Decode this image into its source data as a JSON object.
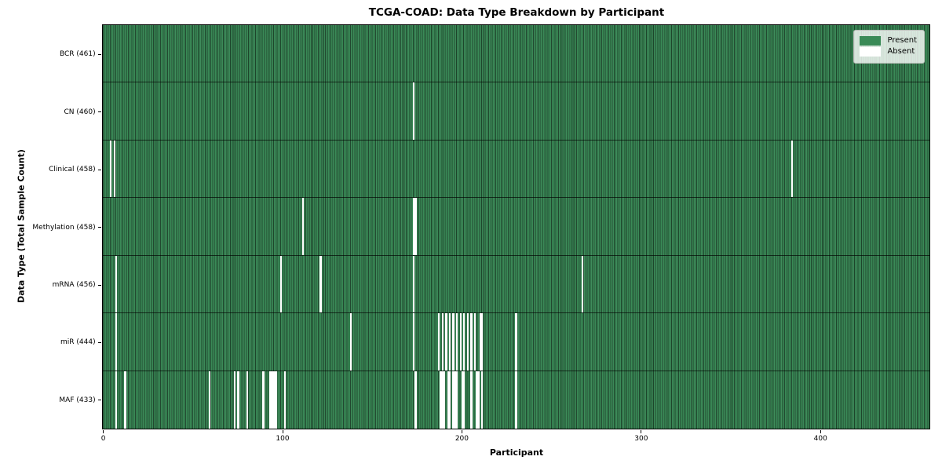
{
  "title": "TCGA-COAD: Data Type Breakdown by Participant",
  "x_axis_label": "Participant",
  "y_axis_label": "Data Type (Total Sample Count)",
  "legend": {
    "present_label": "Present",
    "absent_label": "Absent"
  },
  "colors": {
    "present": "#3a8a57",
    "absent": "#ffffff",
    "cell_edge": "rgba(0,0,0,0.50)",
    "cell_highlight": "rgba(255,255,255,0.05)",
    "row_separator": "rgba(0,0,0,0.65)",
    "plot_border": "#000000",
    "legend_bg": "rgba(255,255,255,0.8)",
    "legend_border": "#b7bcb7"
  },
  "chart_data": {
    "type": "heatmap",
    "title": "TCGA-COAD: Data Type Breakdown by Participant",
    "xlabel": "Participant",
    "ylabel": "Data Type (Total Sample Count)",
    "n_participants": 461,
    "x_ticks": [
      0,
      100,
      200,
      300,
      400
    ],
    "value_encoding": {
      "present": 1,
      "absent": 0
    },
    "legend_position": "upper right",
    "legend": [
      {
        "label": "Present",
        "color": "#3a8a57"
      },
      {
        "label": "Absent",
        "color": "#ffffff"
      }
    ],
    "rows": [
      {
        "data_type": "BCR",
        "label": "BCR (461)",
        "present_count": 461,
        "absent_participants": []
      },
      {
        "data_type": "CN",
        "label": "CN (460)",
        "present_count": 460,
        "absent_participants": [
          173
        ]
      },
      {
        "data_type": "Clinical",
        "label": "Clinical (458)",
        "present_count": 458,
        "absent_participants": [
          4,
          6,
          384
        ]
      },
      {
        "data_type": "Methylation",
        "label": "Methylation (458)",
        "present_count": 458,
        "absent_participants": [
          111,
          173,
          174
        ]
      },
      {
        "data_type": "mRNA",
        "label": "mRNA (456)",
        "present_count": 456,
        "absent_participants": [
          7,
          99,
          121,
          173,
          267
        ]
      },
      {
        "data_type": "miR",
        "label": "miR (444)",
        "present_count": 444,
        "absent_participants": [
          7,
          138,
          173,
          187,
          189,
          191,
          193,
          195,
          197,
          199,
          201,
          203,
          205,
          207,
          210,
          211,
          230
        ]
      },
      {
        "data_type": "MAF",
        "label": "MAF (433)",
        "present_count": 433,
        "absent_participants": [
          7,
          12,
          59,
          73,
          75,
          80,
          89,
          93,
          94,
          95,
          96,
          101,
          174,
          188,
          189,
          190,
          192,
          193,
          195,
          196,
          197,
          200,
          201,
          205,
          208,
          209,
          211,
          230
        ]
      }
    ]
  }
}
